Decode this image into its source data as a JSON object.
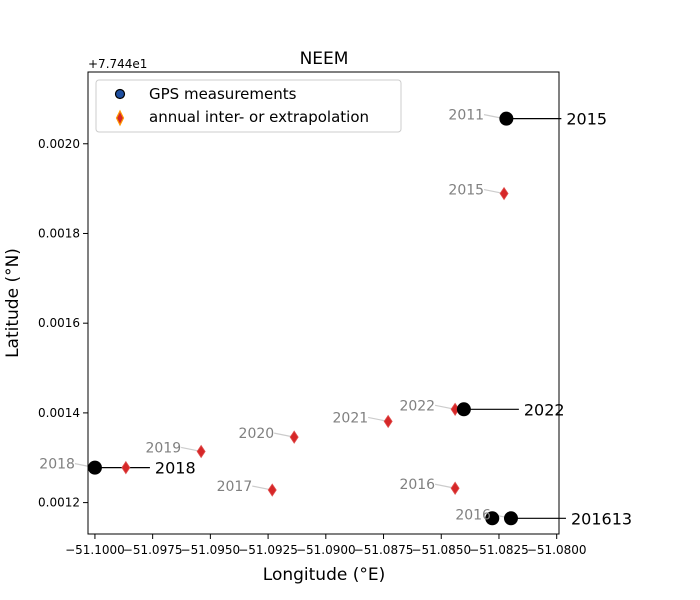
{
  "chart_data": {
    "type": "scatter",
    "title": "NEEM",
    "xlabel": "Longitude (°E)",
    "ylabel": "Latitude (°N)",
    "y_offset_label": "+7.744e1",
    "xlim": [
      -51.1003,
      -51.0799
    ],
    "ylim": [
      0.00113,
      0.00216
    ],
    "x_ticks": [
      -51.1,
      -51.0975,
      -51.095,
      -51.0925,
      -51.09,
      -51.0875,
      -51.085,
      -51.0825,
      -51.08
    ],
    "x_tick_labels": [
      "−51.1000",
      "−51.0975",
      "−51.0950",
      "−51.0925",
      "−51.0900",
      "−51.0875",
      "−51.0850",
      "−51.0825",
      "−51.0800"
    ],
    "y_ticks": [
      0.0012,
      0.0014,
      0.0016,
      0.0018,
      0.002
    ],
    "y_tick_labels": [
      "0.0012",
      "0.0014",
      "0.0016",
      "0.0018",
      "0.0020"
    ],
    "legend": {
      "placement": "upper-left",
      "entries": [
        {
          "label": "GPS measurements",
          "marker": "circle",
          "color": "#1f4fa0",
          "edge": "#000000"
        },
        {
          "label": "annual inter- or extrapolation",
          "marker": "diamond",
          "color": "#d62728",
          "edge": "#ff9900"
        }
      ]
    },
    "gps_measurements": [
      {
        "x": -51.1,
        "y": 0.001278,
        "label": "2018"
      },
      {
        "x": -51.08402,
        "y": 0.001408,
        "label": "2022"
      },
      {
        "x": -51.08218,
        "y": 0.002056,
        "label": "2015"
      },
      {
        "x": -51.08279,
        "y": 0.001165,
        "label": ""
      },
      {
        "x": -51.08198,
        "y": 0.001165,
        "label": "201613"
      }
    ],
    "annual_points": [
      {
        "x": -51.09866,
        "y": 0.001278,
        "label": ""
      },
      {
        "x": -51.0954,
        "y": 0.001314,
        "label": "2019"
      },
      {
        "x": -51.09232,
        "y": 0.001228,
        "label": "2017"
      },
      {
        "x": -51.09137,
        "y": 0.001346,
        "label": "2020"
      },
      {
        "x": -51.0873,
        "y": 0.001381,
        "label": "2021"
      },
      {
        "x": -51.0844,
        "y": 0.001408,
        "label": "2022"
      },
      {
        "x": -51.0844,
        "y": 0.001232,
        "label": "2016"
      },
      {
        "x": -51.08228,
        "y": 0.001889,
        "label": "2015"
      },
      {
        "x": -51.08228,
        "y": 0.002056,
        "label": ""
      }
    ],
    "gray_annotations": [
      {
        "text": "2018",
        "x": -51.1,
        "y": 0.001278
      },
      {
        "text": "2019",
        "x": -51.0954,
        "y": 0.001314
      },
      {
        "text": "2020",
        "x": -51.09137,
        "y": 0.001346
      },
      {
        "text": "2021",
        "x": -51.0873,
        "y": 0.001381
      },
      {
        "text": "2022",
        "x": -51.0844,
        "y": 0.001408
      },
      {
        "text": "2017",
        "x": -51.09232,
        "y": 0.001228
      },
      {
        "text": "2016",
        "x": -51.0844,
        "y": 0.001232
      },
      {
        "text": "2015",
        "x": -51.08228,
        "y": 0.001889
      },
      {
        "text": "2011",
        "x": -51.08228,
        "y": 0.002056
      },
      {
        "text": "2016",
        "x": -51.08198,
        "y": 0.001165
      }
    ],
    "black_annotations": [
      {
        "text": "2018",
        "x": -51.1,
        "y": 0.001278
      },
      {
        "text": "2022",
        "x": -51.08402,
        "y": 0.001408
      },
      {
        "text": "2015",
        "x": -51.08218,
        "y": 0.002056
      },
      {
        "text": "201613",
        "x": -51.08198,
        "y": 0.001165
      }
    ]
  }
}
